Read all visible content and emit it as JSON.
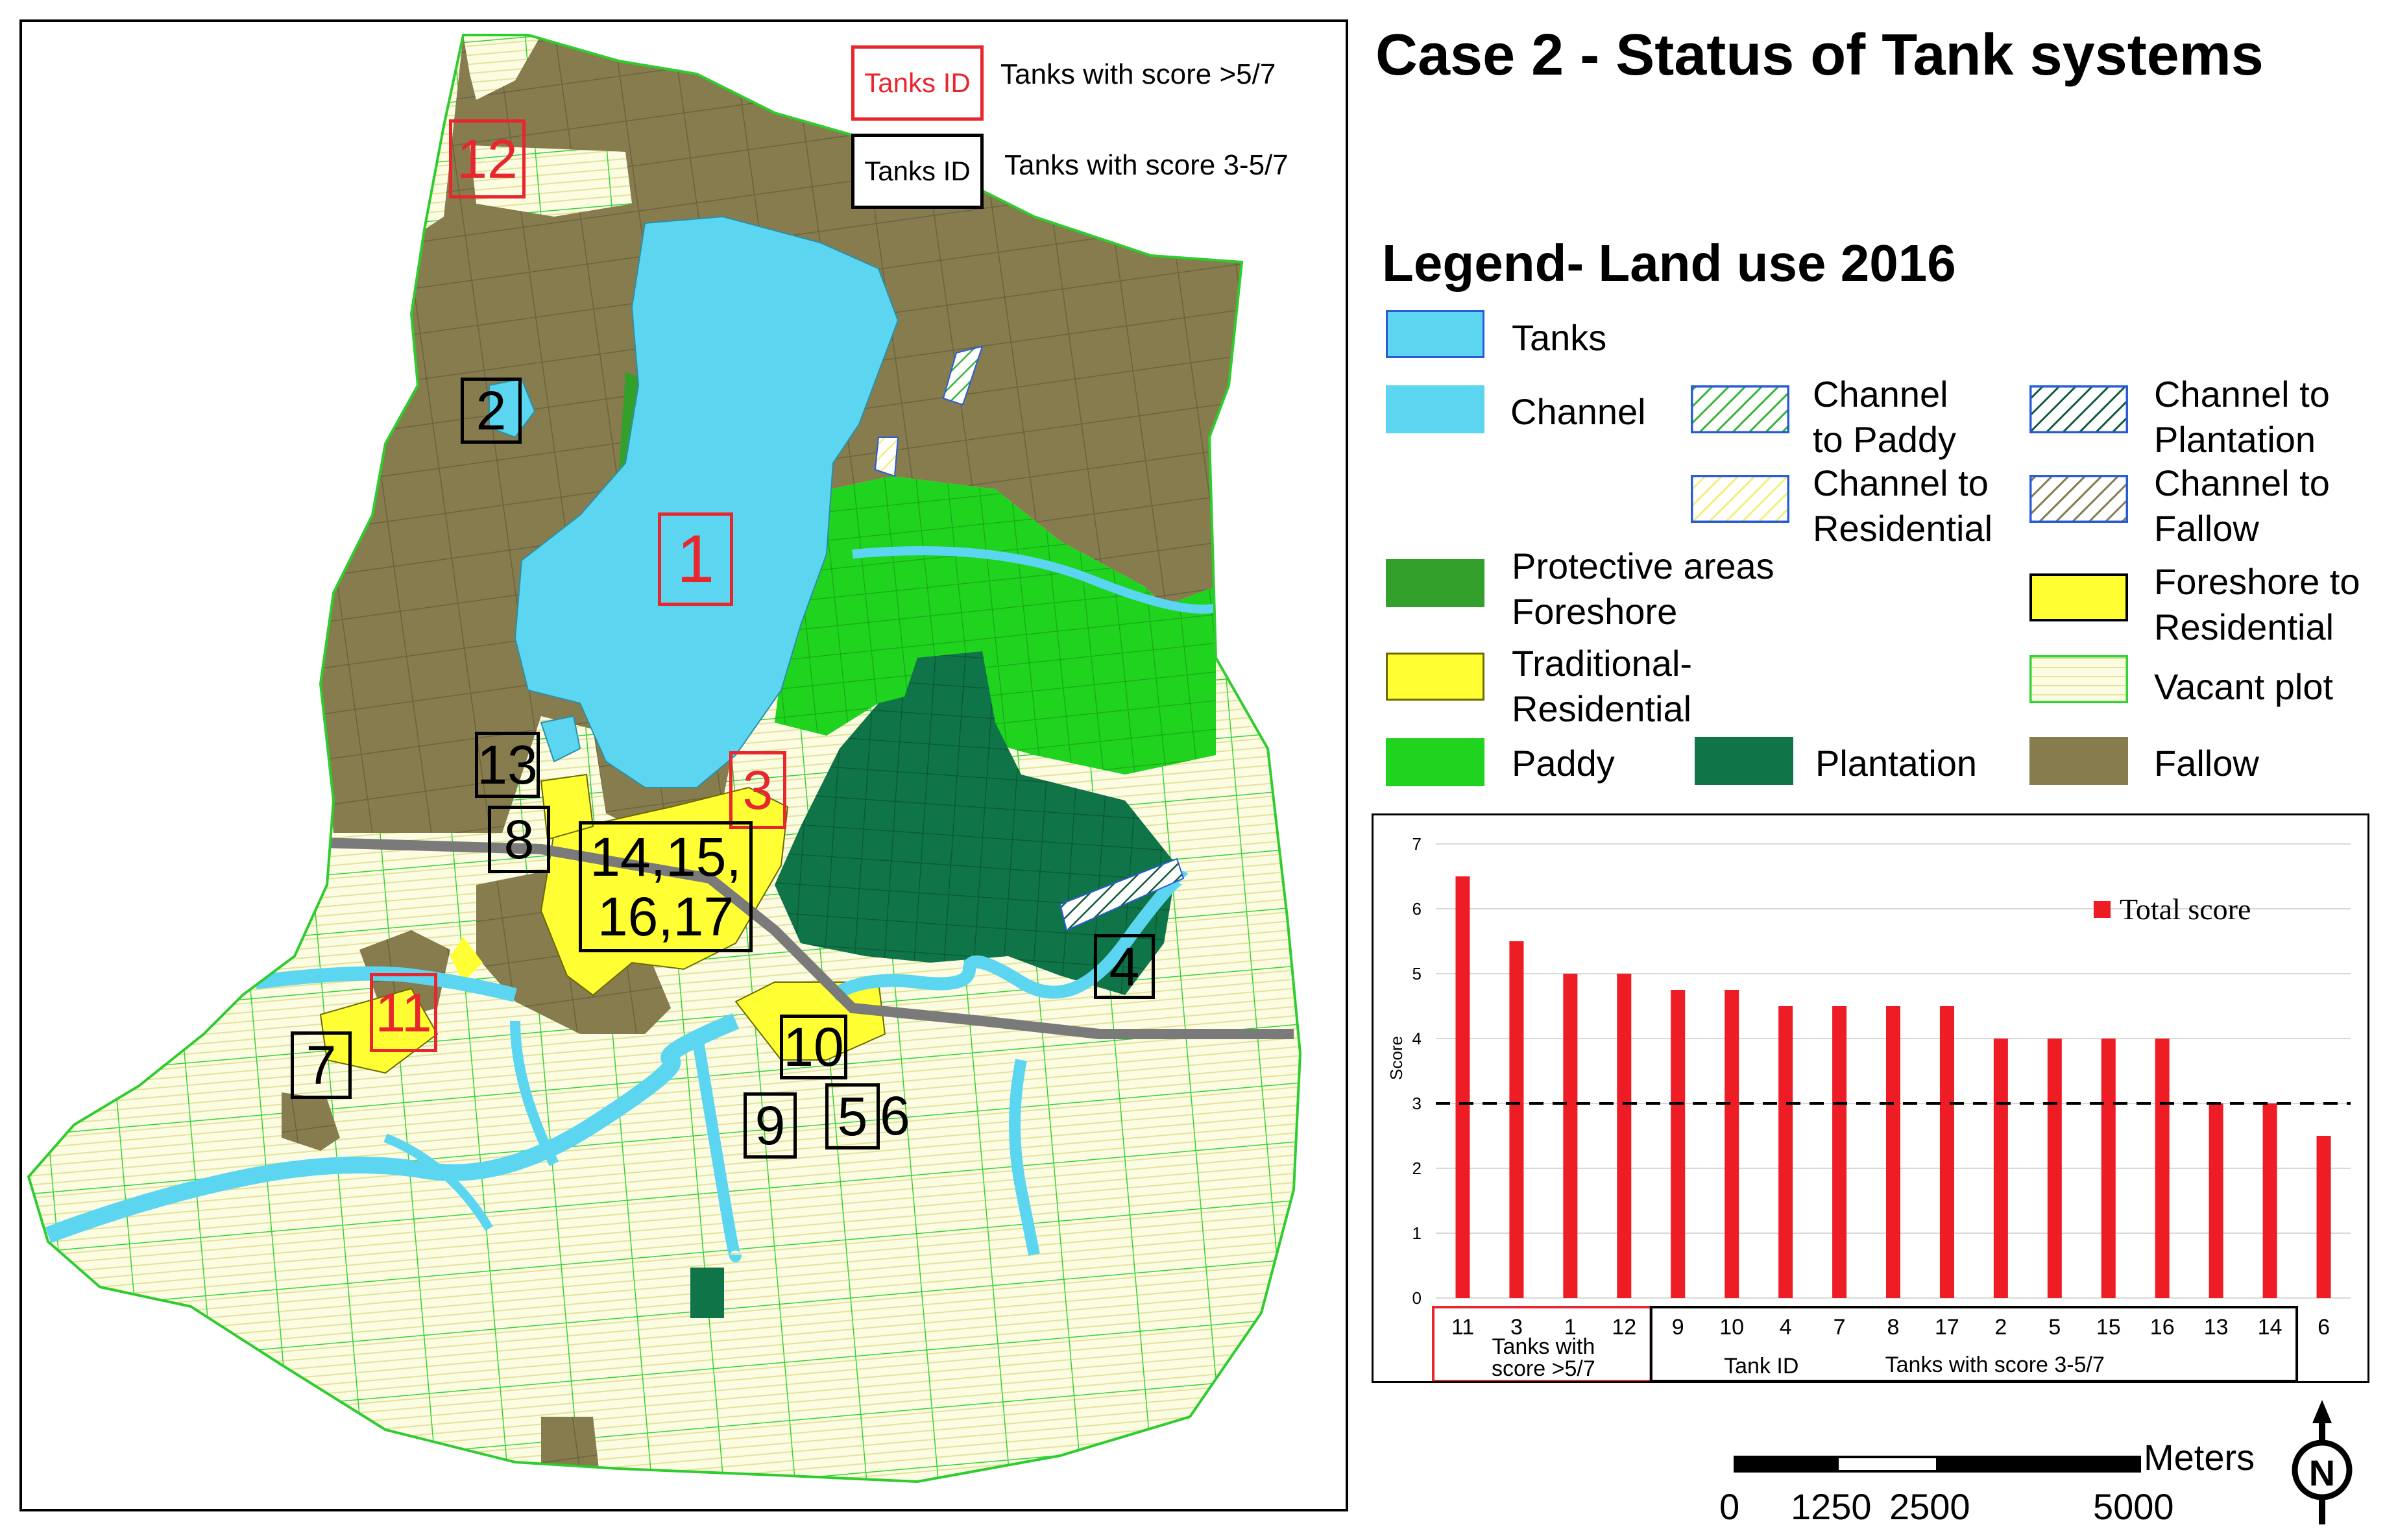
{
  "title": "Case 2 - Status of Tank systems",
  "map_legend": {
    "red_box_label": "Tanks ID",
    "red_box_desc": "Tanks with score >5/7",
    "black_box_label": "Tanks ID",
    "black_box_desc": "Tanks with score 3-5/7"
  },
  "tank_labels": {
    "t1": "1",
    "t2": "2",
    "t3": "3",
    "t4": "4",
    "t5": "5",
    "t6": "6",
    "t7": "7",
    "t8": "8",
    "t9": "9",
    "t10": "10",
    "t11": "11",
    "t12": "12",
    "t13": "13",
    "t14_15": "14,15,",
    "t16_17": "16,17"
  },
  "legend": {
    "title": "Legend- Land use 2016",
    "items": {
      "tanks": "Tanks",
      "channel": "Channel",
      "channel_paddy_1": "Channel",
      "channel_paddy_2": "to Paddy",
      "channel_residential_1": "Channel to",
      "channel_residential_2": "Residential",
      "channel_plantation_1": "Channel to",
      "channel_plantation_2": "Plantation",
      "channel_fallow_1": "Channel to",
      "channel_fallow_2": "Fallow",
      "protective_1": "Protective areas",
      "protective_2": "Foreshore",
      "foreshore_res_1": "Foreshore to",
      "foreshore_res_2": "Residential",
      "trad_res_1": "Traditional-",
      "trad_res_2": "Residential",
      "vacant": "Vacant plot",
      "paddy": "Paddy",
      "plantation": "Plantation",
      "fallow": "Fallow"
    },
    "colors": {
      "tanks": "#5cd6f0",
      "protective": "#33a02c",
      "traditional_residential": "#ffff33",
      "paddy": "#1fd31f",
      "plantation": "#0f7447",
      "vacant": "#fcfce3",
      "fallow": "#867c4e"
    }
  },
  "chart_data": {
    "type": "bar",
    "categories": [
      "11",
      "3",
      "1",
      "12",
      "9",
      "10",
      "4",
      "7",
      "8",
      "17",
      "2",
      "5",
      "15",
      "16",
      "13",
      "14",
      "6"
    ],
    "values": [
      6.5,
      5.5,
      5,
      5,
      4.75,
      4.75,
      4.5,
      4.5,
      4.5,
      4.5,
      4,
      4,
      4,
      4,
      3,
      3,
      2.5
    ],
    "series": [
      {
        "name": "Total score",
        "values": [
          6.5,
          5.5,
          5,
          5,
          4.75,
          4.75,
          4.5,
          4.5,
          4.5,
          4.5,
          4,
          4,
          4,
          4,
          3,
          3,
          2.5
        ]
      }
    ],
    "ylabel": "Score",
    "xlabel": "Tank ID",
    "ylim": [
      0,
      7
    ],
    "yticks": [
      "0",
      "1",
      "2",
      "3",
      "4",
      "5",
      "6",
      "7"
    ],
    "threshold": 3,
    "group_high": "Tanks with score >5/7",
    "group_high_line1": "Tanks with",
    "group_high_line2": "score >5/7",
    "group_mid": "Tanks with score 3-5/7",
    "legend_position": "top-right",
    "bar_color": "#ee1c24"
  },
  "scale_bar": {
    "unit": "Meters",
    "labels": [
      "0",
      "1250",
      "2500",
      "5000"
    ]
  },
  "north_arrow": "N"
}
